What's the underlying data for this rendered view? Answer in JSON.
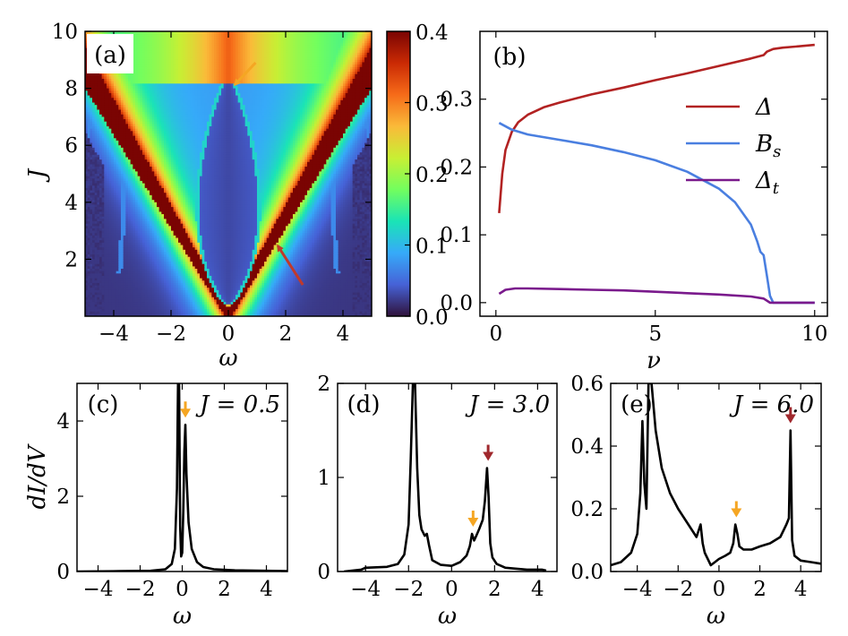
{
  "chart_data": [
    {
      "panel": "(a)",
      "type": "heatmap",
      "xlabel": "ω",
      "ylabel": "J",
      "xlim": [
        -5,
        5
      ],
      "ylim": [
        0,
        10
      ],
      "x_ticks": [
        -4,
        -2,
        0,
        2,
        4
      ],
      "y_ticks": [
        2,
        4,
        6,
        8,
        10
      ],
      "colorbar": {
        "min": 0.0,
        "max": 0.4,
        "ticks": [
          "0.0",
          "0.1",
          "0.2",
          "0.3",
          "0.4"
        ],
        "colormap": "turbo",
        "colors": [
          "#30123b",
          "#4662d7",
          "#36aaf9",
          "#1ae4b6",
          "#72fe5e",
          "#c8ef34",
          "#faba39",
          "#f66b19",
          "#ca2a04",
          "#7a0403"
        ]
      },
      "features": [
        {
          "name": "V-shaped high-intensity bands",
          "apex": [
            0.0,
            0.0
          ],
          "slope_J_per_omega": 1.85,
          "intensity": 0.4
        },
        {
          "name": "central lobe",
          "center_omega": 0.0,
          "J_range": [
            0.4,
            8.4
          ],
          "max_half_width": 1.0,
          "intensity": 0.02
        },
        {
          "name": "outer arcs",
          "omega_positions": [
            -4.3,
            4.3
          ],
          "J_range": [
            1.5,
            7.5
          ]
        }
      ],
      "annotations": [
        {
          "arrow": "orange",
          "color": "#f5a623",
          "points_to": [
            0.1,
            8.0
          ]
        },
        {
          "arrow": "red",
          "color": "#c0392b",
          "points_to": [
            1.6,
            2.6
          ]
        }
      ]
    },
    {
      "panel": "(b)",
      "type": "line",
      "xlabel": "ν",
      "ylabel": "",
      "xlim": [
        -0.5,
        10.4
      ],
      "ylim": [
        -0.02,
        0.4
      ],
      "x_ticks": [
        0,
        5,
        10
      ],
      "y_ticks": [
        "0.0",
        "0.1",
        "0.2",
        "0.3"
      ],
      "legend_position": "top-right",
      "series": [
        {
          "name": "Δ",
          "color": "#b22222",
          "x": [
            0.1,
            0.2,
            0.3,
            0.5,
            0.7,
            1.0,
            1.5,
            2.0,
            3.0,
            4.0,
            5.0,
            6.0,
            7.0,
            8.0,
            8.4,
            8.5,
            8.7,
            9.0,
            9.5,
            10.0
          ],
          "y": [
            0.132,
            0.19,
            0.225,
            0.252,
            0.266,
            0.277,
            0.288,
            0.295,
            0.307,
            0.317,
            0.328,
            0.338,
            0.349,
            0.36,
            0.365,
            0.37,
            0.374,
            0.376,
            0.378,
            0.38
          ]
        },
        {
          "name": "B_s",
          "color": "#4a7fe0",
          "x": [
            0.1,
            0.5,
            1.0,
            2.0,
            3.0,
            4.0,
            5.0,
            6.0,
            7.0,
            7.5,
            8.0,
            8.2,
            8.3,
            8.4,
            8.5,
            8.6,
            8.7,
            10.0
          ],
          "y": [
            0.265,
            0.255,
            0.248,
            0.24,
            0.232,
            0.222,
            0.21,
            0.193,
            0.168,
            0.148,
            0.115,
            0.09,
            0.075,
            0.07,
            0.04,
            0.01,
            0.0,
            0.0
          ]
        },
        {
          "name": "Δ_t",
          "color": "#7a1a8c",
          "x": [
            0.1,
            0.3,
            0.6,
            1.0,
            2.0,
            3.0,
            4.0,
            5.0,
            6.0,
            7.0,
            8.0,
            8.4,
            8.6,
            10.0
          ],
          "y": [
            0.013,
            0.019,
            0.021,
            0.021,
            0.02,
            0.019,
            0.018,
            0.016,
            0.014,
            0.012,
            0.009,
            0.006,
            0.0,
            0.0
          ]
        }
      ],
      "legend": [
        {
          "label": "Δ"
        },
        {
          "label": "B",
          "subscript": "s"
        },
        {
          "label": "Δ",
          "subscript": "t"
        }
      ]
    },
    {
      "panel": "(c)",
      "type": "line",
      "annotation": "J = 0.5",
      "xlabel": "ω",
      "ylabel": "dI/dV",
      "xlim": [
        -5,
        5
      ],
      "ylim": [
        0,
        5
      ],
      "x_ticks": [
        -4,
        -2,
        0,
        2,
        4
      ],
      "y_ticks": [
        "0",
        "2",
        "4"
      ],
      "arrows": [
        {
          "color": "#f5a623",
          "x": 0.15
        }
      ],
      "series": [
        {
          "name": "",
          "color": "#000000",
          "x": [
            -5.0,
            -3.0,
            -1.5,
            -0.8,
            -0.5,
            -0.35,
            -0.25,
            -0.2,
            -0.15,
            -0.1,
            -0.05,
            0.0,
            0.05,
            0.1,
            0.15,
            0.2,
            0.3,
            0.45,
            0.7,
            1.0,
            1.5,
            2.5,
            5.0
          ],
          "y": [
            0.0,
            0.01,
            0.02,
            0.06,
            0.2,
            0.6,
            2.2,
            5.0,
            5.0,
            1.2,
            0.4,
            0.5,
            1.6,
            3.2,
            3.9,
            2.6,
            1.3,
            0.6,
            0.25,
            0.12,
            0.06,
            0.03,
            0.01
          ]
        }
      ]
    },
    {
      "panel": "(d)",
      "type": "line",
      "annotation": "J = 3.0",
      "xlabel": "ω",
      "ylabel": "",
      "xlim": [
        -5.3,
        4.9
      ],
      "ylim": [
        0,
        2
      ],
      "x_ticks": [
        -4,
        -2,
        0,
        2,
        4
      ],
      "y_ticks": [
        "0",
        "1",
        "2"
      ],
      "arrows": [
        {
          "color": "#f5a623",
          "x": 1.0
        },
        {
          "color": "#a0282d",
          "x": 1.7
        }
      ],
      "series": [
        {
          "name": "",
          "color": "#000000",
          "x": [
            -5.0,
            -4.2,
            -4.0,
            -3.0,
            -2.5,
            -2.2,
            -2.0,
            -1.9,
            -1.8,
            -1.7,
            -1.6,
            -1.5,
            -1.4,
            -1.25,
            -1.15,
            -1.05,
            -0.9,
            -0.5,
            0.0,
            0.4,
            0.7,
            0.85,
            0.95,
            1.05,
            1.15,
            1.3,
            1.45,
            1.55,
            1.65,
            1.72,
            1.8,
            1.9,
            2.1,
            2.5,
            3.5,
            4.2,
            4.4
          ],
          "y": [
            0.0,
            0.02,
            0.04,
            0.05,
            0.08,
            0.18,
            0.5,
            1.2,
            2.0,
            2.0,
            1.1,
            0.6,
            0.45,
            0.38,
            0.4,
            0.28,
            0.12,
            0.07,
            0.06,
            0.1,
            0.17,
            0.27,
            0.4,
            0.33,
            0.38,
            0.46,
            0.55,
            0.75,
            1.1,
            0.8,
            0.3,
            0.15,
            0.08,
            0.04,
            0.02,
            0.02,
            0.01
          ]
        }
      ]
    },
    {
      "panel": "(e)",
      "type": "line",
      "annotation": "J = 6.0",
      "xlabel": "ω",
      "ylabel": "",
      "xlim": [
        -5.3,
        5.0
      ],
      "ylim": [
        0,
        0.6
      ],
      "x_ticks": [
        -4,
        -2,
        0,
        2,
        4
      ],
      "y_ticks": [
        "0.0",
        "0.2",
        "0.4",
        "0.6"
      ],
      "arrows": [
        {
          "color": "#f5a623",
          "x": 0.85
        },
        {
          "color": "#a0282d",
          "x": 3.5
        }
      ],
      "series": [
        {
          "name": "",
          "color": "#000000",
          "x": [
            -5.3,
            -4.8,
            -4.3,
            -4.0,
            -3.85,
            -3.75,
            -3.65,
            -3.55,
            -3.45,
            -3.3,
            -3.1,
            -2.8,
            -2.4,
            -2.0,
            -1.5,
            -1.1,
            -0.9,
            -0.8,
            -0.7,
            -0.55,
            -0.4,
            -0.2,
            0.0,
            0.3,
            0.55,
            0.7,
            0.8,
            0.9,
            1.0,
            1.2,
            1.6,
            2.0,
            2.5,
            3.0,
            3.3,
            3.42,
            3.5,
            3.58,
            3.7,
            4.0,
            4.5,
            5.0
          ],
          "y": [
            0.02,
            0.03,
            0.06,
            0.12,
            0.25,
            0.48,
            0.28,
            0.2,
            0.6,
            0.6,
            0.45,
            0.33,
            0.25,
            0.2,
            0.15,
            0.11,
            0.15,
            0.09,
            0.06,
            0.04,
            0.02,
            0.03,
            0.04,
            0.05,
            0.06,
            0.09,
            0.15,
            0.12,
            0.08,
            0.07,
            0.07,
            0.08,
            0.09,
            0.11,
            0.15,
            0.17,
            0.45,
            0.1,
            0.05,
            0.035,
            0.03,
            0.025
          ]
        }
      ]
    }
  ]
}
